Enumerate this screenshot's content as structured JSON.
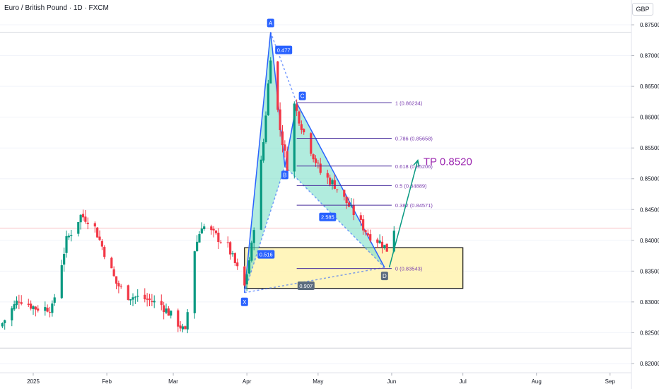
{
  "header": {
    "symbol_title": "Euro / British Pound · 1D · FXCM",
    "currency": "GBP"
  },
  "colors": {
    "up": "#089981",
    "down": "#f23645",
    "pattern_fill": "#7ddfc8",
    "pattern_line": "#2962ff",
    "fib_line": "#4a2f9e",
    "fib_text": "#7b3fb0",
    "zone_fill": "#fff3b0",
    "tp_color": "#9c27b0",
    "arrow": "#089981"
  },
  "chart_data": {
    "type": "candlestick",
    "y_axis": {
      "min": 0.8185,
      "max": 0.8765,
      "ticks": [
        "0.82000",
        "0.82500",
        "0.83000",
        "0.83500",
        "0.84000",
        "0.84500",
        "0.85000",
        "0.85500",
        "0.86000",
        "0.86500",
        "0.87000",
        "0.87500"
      ]
    },
    "x_axis": {
      "tick_labels": [
        {
          "label": "2025",
          "date": "2025-01-01"
        },
        {
          "label": "Feb",
          "date": "2025-02-01"
        },
        {
          "label": "Mar",
          "date": "2025-03-01"
        },
        {
          "label": "Apr",
          "date": "2025-04-01"
        },
        {
          "label": "May",
          "date": "2025-05-01"
        },
        {
          "label": "Jun",
          "date": "2025-06-01"
        },
        {
          "label": "Jul",
          "date": "2025-07-01"
        },
        {
          "label": "Aug",
          "date": "2025-08-01"
        },
        {
          "label": "Sep",
          "date": "2025-09-01"
        }
      ],
      "range": [
        "2024-12-18",
        "2025-09-10"
      ]
    },
    "close_path": [
      [
        "2024-12-18",
        0.826
      ],
      [
        "2024-12-26",
        0.8305
      ],
      [
        "2025-01-02",
        0.829
      ],
      [
        "2025-01-09",
        0.829
      ],
      [
        "2025-01-15",
        0.84
      ],
      [
        "2025-01-21",
        0.844
      ],
      [
        "2025-01-26",
        0.843
      ],
      [
        "2025-01-31",
        0.838
      ],
      [
        "2025-02-05",
        0.833
      ],
      [
        "2025-02-10",
        0.831
      ],
      [
        "2025-02-17",
        0.8305
      ],
      [
        "2025-02-24",
        0.8295
      ],
      [
        "2025-03-02",
        0.827
      ],
      [
        "2025-03-06",
        0.825
      ],
      [
        "2025-03-10",
        0.8385
      ],
      [
        "2025-03-13",
        0.8425
      ],
      [
        "2025-03-18",
        0.841
      ],
      [
        "2025-03-24",
        0.839
      ],
      [
        "2025-03-31",
        0.8325
      ],
      [
        "2025-04-03",
        0.839
      ],
      [
        "2025-04-08",
        0.856
      ],
      [
        "2025-04-11",
        0.87
      ],
      [
        "2025-04-15",
        0.858
      ],
      [
        "2025-04-18",
        0.852
      ],
      [
        "2025-04-21",
        0.862
      ],
      [
        "2025-04-25",
        0.8575
      ],
      [
        "2025-05-02",
        0.851
      ],
      [
        "2025-05-08",
        0.849
      ],
      [
        "2025-05-15",
        0.845
      ],
      [
        "2025-05-22",
        0.841
      ],
      [
        "2025-05-28",
        0.8395
      ],
      [
        "2025-05-30",
        0.8385
      ],
      [
        "2025-06-02",
        0.842
      ]
    ],
    "pattern": {
      "name": "XABCD",
      "points": [
        {
          "label": "X",
          "date": "2025-03-31",
          "value": 0.8315
        },
        {
          "label": "A",
          "date": "2025-04-11",
          "value": 0.8738
        },
        {
          "label": "B",
          "date": "2025-04-17",
          "value": 0.852
        },
        {
          "label": "C",
          "date": "2025-04-22",
          "value": 0.8623
        },
        {
          "label": "D",
          "date": "2025-05-29",
          "value": 0.8356
        }
      ],
      "ratios": [
        {
          "text": "0.516",
          "at": "XB"
        },
        {
          "text": "0.477",
          "at": "AC"
        },
        {
          "text": "2.585",
          "at": "BD"
        },
        {
          "text": "0.907",
          "at": "XD"
        }
      ]
    },
    "fib_levels": [
      {
        "ratio": "1",
        "value": 0.86234,
        "label": "1 (0.86234)"
      },
      {
        "ratio": "0.786",
        "value": 0.85658,
        "label": "0.786 (0.85658)"
      },
      {
        "ratio": "0.618",
        "value": 0.85206,
        "label": "0.618 (0.85206)"
      },
      {
        "ratio": "0.5",
        "value": 0.84889,
        "label": "0.5 (0.84889)"
      },
      {
        "ratio": "0.382",
        "value": 0.84571,
        "label": "0.382 (0.84571)"
      },
      {
        "ratio": "0",
        "value": 0.83543,
        "label": "0 (0.83543)"
      }
    ],
    "zone": {
      "top": 0.8388,
      "bottom": 0.8322,
      "start": "2025-03-31",
      "end": "2025-07-01"
    },
    "target": {
      "label": "TP 0.8520",
      "value": 0.852
    },
    "arrow": {
      "from": {
        "date": "2025-05-31",
        "value": 0.8356
      },
      "to": {
        "date": "2025-06-12",
        "value": 0.853
      }
    },
    "hlines": [
      0.8738,
      0.842,
      0.8225
    ]
  }
}
